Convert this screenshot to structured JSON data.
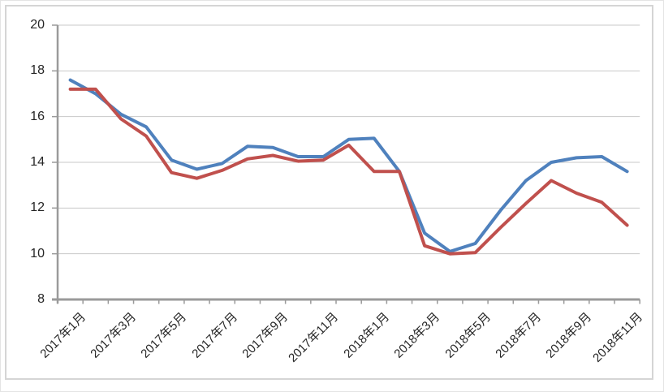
{
  "chart_data": {
    "type": "line",
    "title": "",
    "xlabel": "",
    "ylabel": "",
    "ylim": [
      8,
      20
    ],
    "y_tick_step": 2,
    "y_tick_labels": [
      "20",
      "18",
      "16",
      "14",
      "12",
      "10",
      "8"
    ],
    "grid": true,
    "legend": "none",
    "categories": [
      "2017年1月",
      "2017年2月",
      "2017年3月",
      "2017年4月",
      "2017年5月",
      "2017年6月",
      "2017年7月",
      "2017年8月",
      "2017年9月",
      "2017年10月",
      "2017年11月",
      "2017年12月",
      "2018年1月",
      "2018年2月",
      "2018年3月",
      "2018年4月",
      "2018年5月",
      "2018年6月",
      "2018年7月",
      "2018年8月",
      "2018年9月",
      "2018年10月",
      "2018年11月"
    ],
    "x_tick_labels": [
      "2017年1月",
      "2017年3月",
      "2017年5月",
      "2017年7月",
      "2017年9月",
      "2017年11月",
      "2018年1月",
      "2018年3月",
      "2018年5月",
      "2018年7月",
      "2018年9月",
      "2018年11月"
    ],
    "series": [
      {
        "name": "series-1-blue",
        "color": "#4F81BD",
        "values": [
          17.6,
          17.0,
          16.1,
          15.55,
          14.1,
          13.7,
          13.95,
          14.7,
          14.65,
          14.25,
          14.25,
          15.0,
          15.05,
          13.6,
          10.9,
          10.1,
          10.45,
          11.9,
          13.2,
          14.0,
          14.2,
          14.25,
          13.6
        ]
      },
      {
        "name": "series-2-red",
        "color": "#C0504D",
        "values": [
          17.2,
          17.2,
          15.9,
          15.15,
          13.55,
          13.3,
          13.65,
          14.15,
          14.3,
          14.05,
          14.1,
          14.75,
          13.6,
          13.6,
          10.35,
          10.0,
          10.05,
          11.15,
          12.2,
          13.2,
          12.65,
          12.25,
          11.25
        ]
      }
    ]
  },
  "colors": {
    "grid": "#c8c8c8",
    "axis": "#9a9a9a",
    "tick_text": "#262626",
    "frame_border": "#d5d5d5",
    "background": "#ffffff"
  }
}
